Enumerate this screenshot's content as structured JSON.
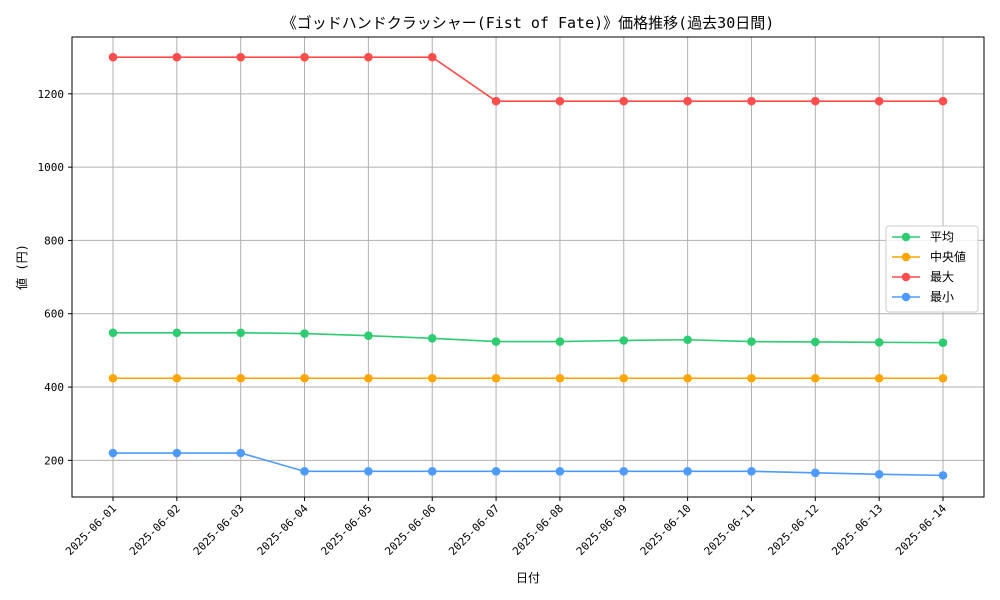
{
  "chart_data": {
    "type": "line",
    "title": "《ゴッドハンドクラッシャー(Fist of Fate)》価格推移(過去30日間)",
    "xlabel": "日付",
    "ylabel": "値 (円)",
    "categories": [
      "2025-06-01",
      "2025-06-02",
      "2025-06-03",
      "2025-06-04",
      "2025-06-05",
      "2025-06-06",
      "2025-06-07",
      "2025-06-08",
      "2025-06-09",
      "2025-06-10",
      "2025-06-11",
      "2025-06-12",
      "2025-06-13",
      "2025-06-14"
    ],
    "ylim": [
      100,
      1355
    ],
    "yticks": [
      200,
      400,
      600,
      800,
      1000,
      1200
    ],
    "grid": true,
    "legend_position": "center-right",
    "series": [
      {
        "name": "平均",
        "color": "#2ecc71",
        "values": [
          548,
          548,
          548,
          546,
          540,
          533,
          524,
          524,
          527,
          529,
          524,
          523,
          522,
          521
        ]
      },
      {
        "name": "中央値",
        "color": "#ffa500",
        "values": [
          424,
          424,
          424,
          424,
          424,
          424,
          424,
          424,
          424,
          424,
          424,
          424,
          424,
          424
        ]
      },
      {
        "name": "最大",
        "color": "#ff4d4d",
        "values": [
          1300,
          1300,
          1300,
          1300,
          1300,
          1300,
          1180,
          1180,
          1180,
          1180,
          1180,
          1180,
          1180,
          1180
        ]
      },
      {
        "name": "最小",
        "color": "#4d9bff",
        "values": [
          220,
          220,
          220,
          170,
          170,
          170,
          170,
          170,
          170,
          170,
          170,
          166,
          162,
          159
        ]
      }
    ]
  }
}
